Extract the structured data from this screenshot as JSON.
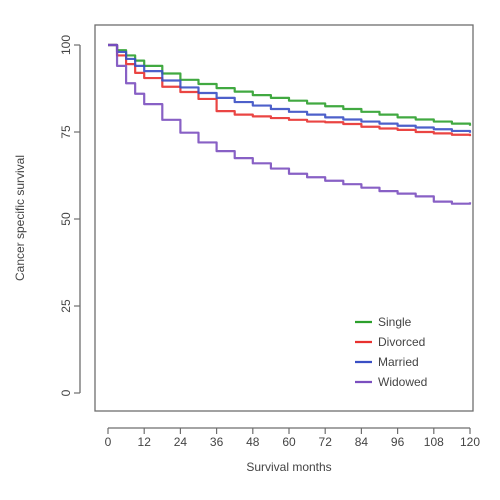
{
  "chart_data": {
    "type": "line",
    "title": "",
    "xlabel": "Survival months",
    "ylabel": "Cancer specific survival",
    "xlim": [
      0,
      120
    ],
    "ylim": [
      0,
      100
    ],
    "x_ticks": [
      0,
      12,
      24,
      36,
      48,
      60,
      72,
      84,
      96,
      108,
      120
    ],
    "x_tick_labels": [
      "0",
      "12",
      "24",
      "36",
      "48",
      "60",
      "72",
      "84",
      "96",
      "108",
      "120"
    ],
    "y_ticks": [
      0,
      25,
      50,
      75,
      100
    ],
    "y_tick_labels": [
      "0",
      "25",
      "50",
      "75",
      "100"
    ],
    "grid": false,
    "legend_position": "bottom-right",
    "series": [
      {
        "name": "Single",
        "color": "#2ca02c",
        "x": [
          0,
          3,
          6,
          9,
          12,
          18,
          24,
          30,
          36,
          42,
          48,
          54,
          60,
          66,
          72,
          78,
          84,
          90,
          96,
          102,
          108,
          114,
          120
        ],
        "y": [
          100,
          98.5,
          97,
          95.5,
          94,
          91.8,
          90,
          88.8,
          87.6,
          86.6,
          85.6,
          84.8,
          84,
          83.2,
          82.4,
          81.6,
          80.8,
          80,
          79.2,
          78.6,
          78,
          77.4,
          76.8
        ]
      },
      {
        "name": "Divorced",
        "color": "#e8312f",
        "x": [
          0,
          3,
          6,
          9,
          12,
          18,
          24,
          30,
          36,
          42,
          48,
          54,
          60,
          66,
          72,
          78,
          84,
          90,
          96,
          102,
          108,
          114,
          120
        ],
        "y": [
          100,
          97,
          94.5,
          92,
          90.5,
          88,
          86.5,
          84.5,
          81,
          80,
          79.5,
          79,
          78.5,
          78,
          77.8,
          77.3,
          76.5,
          76,
          75.6,
          75,
          74.6,
          74.2,
          73.8
        ]
      },
      {
        "name": "Married",
        "color": "#3a4fc4",
        "x": [
          0,
          3,
          6,
          9,
          12,
          18,
          24,
          30,
          36,
          42,
          48,
          54,
          60,
          66,
          72,
          78,
          84,
          90,
          96,
          102,
          108,
          114,
          120
        ],
        "y": [
          100,
          98,
          96,
          94,
          92.5,
          89.8,
          87.8,
          86.2,
          84.8,
          83.6,
          82.6,
          81.6,
          80.8,
          80,
          79.2,
          78.6,
          78,
          77.4,
          76.8,
          76.3,
          75.8,
          75.3,
          74.8
        ]
      },
      {
        "name": "Widowed",
        "color": "#7b4fbf",
        "x": [
          0,
          3,
          6,
          9,
          12,
          18,
          24,
          30,
          36,
          42,
          48,
          54,
          60,
          66,
          72,
          78,
          84,
          90,
          96,
          102,
          108,
          114,
          120
        ],
        "y": [
          100,
          94,
          89,
          86,
          83,
          78.5,
          74.8,
          72,
          69.5,
          67.5,
          66,
          64.5,
          63,
          62,
          61,
          60,
          59,
          58,
          57.3,
          56.5,
          55,
          54.4,
          54.8
        ]
      }
    ]
  }
}
